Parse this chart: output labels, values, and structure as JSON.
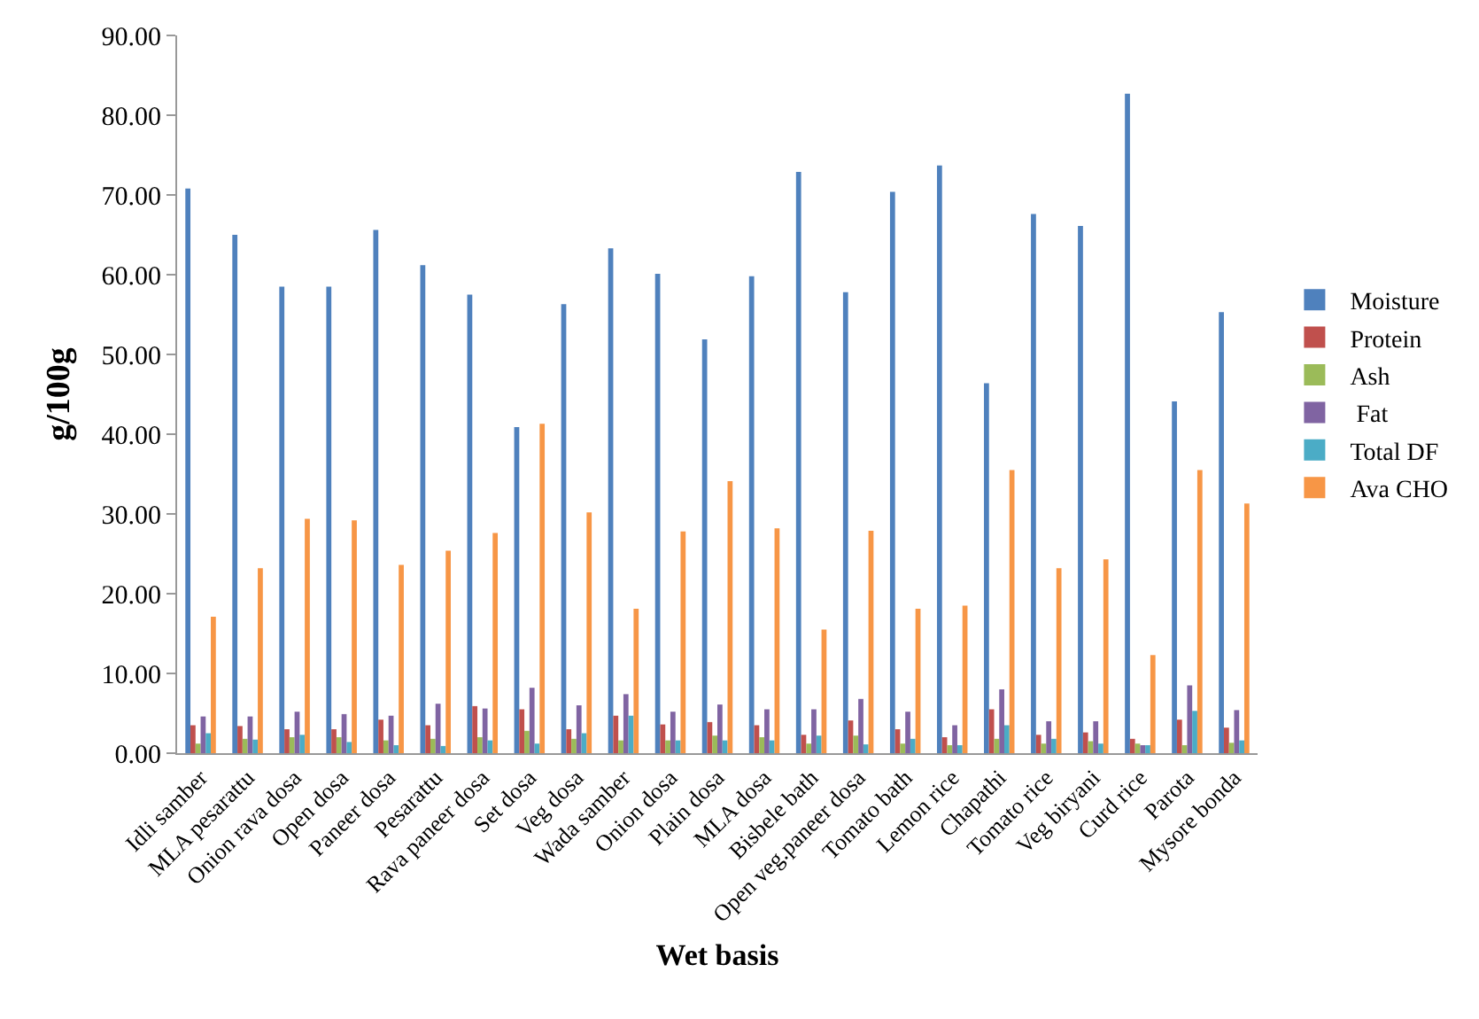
{
  "chart_data": {
    "type": "bar",
    "xlabel": "Wet basis",
    "ylabel": "g/100g",
    "categories": [
      "Idli samber",
      "MLA pesarattu",
      "Onion rava dosa",
      "Open dosa",
      "Paneer dosa",
      "Pesarattu",
      "Rava paneer dosa",
      "Set dosa",
      "Veg dosa",
      "Wada samber",
      "Onion dosa",
      "Plain dosa",
      "MLA dosa",
      "Bisbele bath",
      "Open veg.paneer dosa",
      "Tomato bath",
      "Lemon rice",
      "Chapathi",
      "Tomato rice",
      "Veg biryani",
      "Curd rice",
      "Parota",
      "Mysore bonda"
    ],
    "series": [
      {
        "name": "Moisture",
        "color": "#4f81bd",
        "values": [
          70.8,
          65.0,
          58.5,
          58.5,
          65.6,
          61.2,
          57.5,
          40.9,
          56.3,
          63.3,
          60.1,
          51.9,
          59.8,
          72.9,
          57.8,
          70.4,
          73.7,
          46.4,
          67.6,
          66.1,
          82.7,
          44.1,
          55.3
        ]
      },
      {
        "name": "Protein",
        "color": "#c0504d",
        "values": [
          3.5,
          3.4,
          3.0,
          3.0,
          4.2,
          3.5,
          5.9,
          5.5,
          3.0,
          4.7,
          3.6,
          3.9,
          3.5,
          2.3,
          4.1,
          3.0,
          2.0,
          5.5,
          2.3,
          2.6,
          1.8,
          4.2,
          3.2
        ]
      },
      {
        "name": "Ash",
        "color": "#9bbb59",
        "values": [
          1.2,
          1.8,
          2.0,
          2.0,
          1.6,
          1.8,
          2.0,
          2.8,
          1.8,
          1.6,
          1.6,
          2.2,
          2.0,
          1.2,
          2.2,
          1.2,
          1.0,
          1.8,
          1.2,
          1.5,
          1.2,
          1.0,
          1.3
        ]
      },
      {
        "name": " Fat",
        "color": "#8064a2",
        "values": [
          4.6,
          4.6,
          5.2,
          4.9,
          4.7,
          6.2,
          5.6,
          8.2,
          6.0,
          7.4,
          5.2,
          6.1,
          5.5,
          5.5,
          6.8,
          5.2,
          3.5,
          8.0,
          4.0,
          4.0,
          1.0,
          8.5,
          5.4
        ]
      },
      {
        "name": "Total DF",
        "color": "#4bacc6",
        "values": [
          2.5,
          1.7,
          2.3,
          1.4,
          1.0,
          0.9,
          1.6,
          1.2,
          2.5,
          4.7,
          1.6,
          1.6,
          1.6,
          2.2,
          1.1,
          1.8,
          1.0,
          3.5,
          1.8,
          1.2,
          1.0,
          5.3,
          1.6
        ]
      },
      {
        "name": "Ava CHO",
        "color": "#f79646",
        "values": [
          17.1,
          23.2,
          29.4,
          29.2,
          23.6,
          25.4,
          27.6,
          41.3,
          30.2,
          18.1,
          27.8,
          34.1,
          28.2,
          15.5,
          27.9,
          18.1,
          18.5,
          35.5,
          23.2,
          24.3,
          12.3,
          35.5,
          31.3
        ]
      }
    ],
    "ylim": [
      0,
      90
    ],
    "yticks": [
      {
        "value": 0,
        "label": "0.00"
      },
      {
        "value": 10,
        "label": "10.00"
      },
      {
        "value": 20,
        "label": "20.00"
      },
      {
        "value": 30,
        "label": "30.00"
      },
      {
        "value": 40,
        "label": "40.00"
      },
      {
        "value": 50,
        "label": "50.00"
      },
      {
        "value": 60,
        "label": "60.00"
      },
      {
        "value": 70,
        "label": "70.00"
      },
      {
        "value": 80,
        "label": "80.00"
      },
      {
        "value": 90,
        "label": "90.00"
      }
    ],
    "grid": false,
    "legend": "right"
  }
}
